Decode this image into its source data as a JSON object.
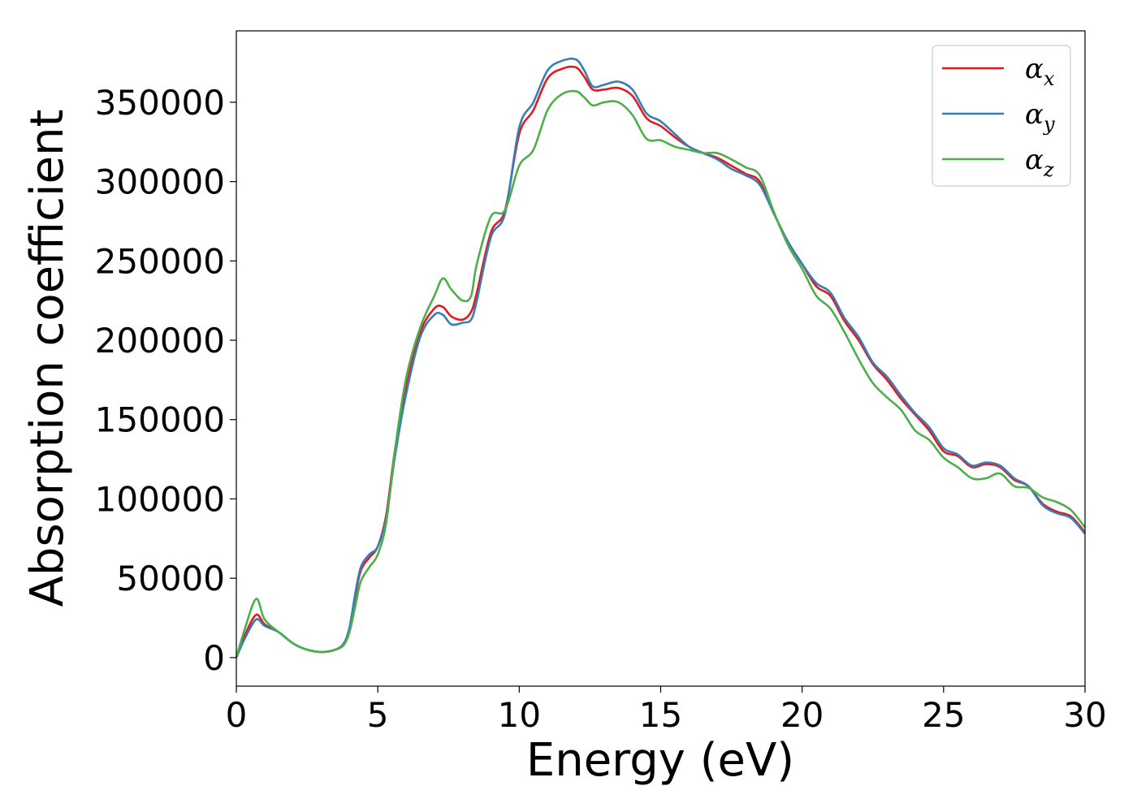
{
  "chart_data": {
    "type": "line",
    "title": "",
    "xlabel": "Energy (eV)",
    "ylabel": "Absorption coefficient",
    "xlim": [
      0,
      30
    ],
    "ylim": [
      -18000,
      395000
    ],
    "xticks": [
      0,
      5,
      10,
      15,
      20,
      25,
      30
    ],
    "yticks": [
      0,
      50000,
      100000,
      150000,
      200000,
      250000,
      300000,
      350000
    ],
    "grid": false,
    "legend": "top-right",
    "series": [
      {
        "name": "αx",
        "label_base": "α",
        "label_sub": "x",
        "color": "#e41a1c",
        "x": [
          0,
          0.3,
          0.7,
          1.0,
          1.5,
          2.0,
          2.5,
          3.0,
          3.5,
          3.8,
          4.0,
          4.2,
          4.4,
          4.7,
          5.0,
          5.3,
          5.6,
          6.0,
          6.5,
          7.0,
          7.3,
          7.6,
          8.0,
          8.3,
          8.5,
          9.0,
          9.5,
          10.0,
          10.5,
          11.0,
          11.5,
          12.0,
          12.3,
          12.6,
          13.0,
          13.5,
          14.0,
          14.5,
          15.0,
          15.5,
          16.0,
          16.5,
          17.0,
          17.5,
          18.0,
          18.5,
          19.0,
          19.5,
          20.0,
          20.5,
          21.0,
          21.5,
          22.0,
          22.5,
          23.0,
          23.5,
          24.0,
          24.5,
          25.0,
          25.5,
          26.0,
          26.5,
          27.0,
          27.5,
          28.0,
          28.5,
          29.0,
          29.5,
          30.0
        ],
        "y": [
          0,
          14000,
          27000,
          21000,
          16000,
          9000,
          5000,
          3500,
          5000,
          9000,
          18000,
          38000,
          55000,
          63000,
          70000,
          90000,
          130000,
          170000,
          205000,
          220000,
          221000,
          215000,
          213000,
          218000,
          230000,
          268000,
          282000,
          330000,
          345000,
          365000,
          371000,
          372000,
          366000,
          358000,
          358000,
          359000,
          354000,
          340000,
          335000,
          328000,
          322000,
          318000,
          315000,
          310000,
          305000,
          300000,
          280000,
          262000,
          248000,
          234000,
          228000,
          212000,
          200000,
          185000,
          175000,
          163000,
          153000,
          143000,
          130000,
          127000,
          120000,
          122000,
          120000,
          112000,
          108000,
          97000,
          92000,
          89000,
          79000
        ]
      },
      {
        "name": "αy",
        "label_base": "α",
        "label_sub": "y",
        "color": "#377eb8",
        "x": [
          0,
          0.3,
          0.7,
          1.0,
          1.5,
          2.0,
          2.5,
          3.0,
          3.5,
          3.8,
          4.0,
          4.2,
          4.4,
          4.7,
          5.0,
          5.3,
          5.6,
          6.0,
          6.5,
          7.0,
          7.3,
          7.6,
          8.0,
          8.3,
          8.5,
          9.0,
          9.5,
          10.0,
          10.5,
          11.0,
          11.5,
          12.0,
          12.3,
          12.6,
          13.0,
          13.5,
          14.0,
          14.5,
          15.0,
          15.5,
          16.0,
          16.5,
          17.0,
          17.5,
          18.0,
          18.5,
          19.0,
          19.5,
          20.0,
          20.5,
          21.0,
          21.5,
          22.0,
          22.5,
          23.0,
          23.5,
          24.0,
          24.5,
          25.0,
          25.5,
          26.0,
          26.5,
          27.0,
          27.5,
          28.0,
          28.5,
          29.0,
          29.5,
          30.0
        ],
        "y": [
          0,
          12000,
          24000,
          20000,
          16000,
          9000,
          5000,
          3500,
          5000,
          9000,
          19000,
          40000,
          57000,
          65000,
          70000,
          88000,
          126000,
          166000,
          202000,
          216000,
          216000,
          210000,
          211000,
          213000,
          225000,
          265000,
          280000,
          334000,
          350000,
          370000,
          376000,
          377000,
          370000,
          360000,
          361000,
          363000,
          358000,
          343000,
          338000,
          330000,
          322000,
          318000,
          314000,
          308000,
          304000,
          298000,
          280000,
          262000,
          248000,
          236000,
          230000,
          214000,
          202000,
          186000,
          177000,
          165000,
          154000,
          145000,
          132000,
          128000,
          121000,
          123000,
          121000,
          113000,
          108000,
          96000,
          91000,
          88000,
          78000
        ]
      },
      {
        "name": "αz",
        "label_base": "α",
        "label_sub": "z",
        "color": "#4daf4a",
        "x": [
          0,
          0.3,
          0.7,
          1.0,
          1.5,
          2.0,
          2.5,
          3.0,
          3.5,
          3.8,
          4.0,
          4.2,
          4.4,
          4.7,
          5.0,
          5.3,
          5.6,
          6.0,
          6.5,
          7.0,
          7.3,
          7.6,
          8.0,
          8.3,
          8.5,
          9.0,
          9.5,
          10.0,
          10.5,
          11.0,
          11.5,
          12.0,
          12.3,
          12.6,
          13.0,
          13.5,
          14.0,
          14.5,
          15.0,
          15.5,
          16.0,
          16.5,
          17.0,
          17.5,
          18.0,
          18.5,
          19.0,
          19.5,
          20.0,
          20.5,
          21.0,
          21.5,
          22.0,
          22.5,
          23.0,
          23.5,
          24.0,
          24.5,
          25.0,
          25.5,
          26.0,
          26.5,
          27.0,
          27.5,
          28.0,
          28.5,
          29.0,
          29.5,
          30.0
        ],
        "y": [
          0,
          18000,
          37000,
          24000,
          16000,
          9000,
          5000,
          3500,
          5000,
          8000,
          16000,
          32000,
          48000,
          57000,
          65000,
          85000,
          130000,
          176000,
          208000,
          228000,
          239000,
          232000,
          225000,
          228000,
          248000,
          278000,
          282000,
          310000,
          320000,
          345000,
          355000,
          357000,
          353000,
          348000,
          350000,
          350000,
          342000,
          327000,
          326000,
          322000,
          320000,
          318000,
          318000,
          314000,
          309000,
          304000,
          281000,
          260000,
          245000,
          228000,
          220000,
          205000,
          188000,
          173000,
          164000,
          156000,
          143000,
          137000,
          126000,
          120000,
          113000,
          113000,
          116000,
          108000,
          107000,
          101000,
          98000,
          93000,
          82000
        ]
      }
    ]
  }
}
